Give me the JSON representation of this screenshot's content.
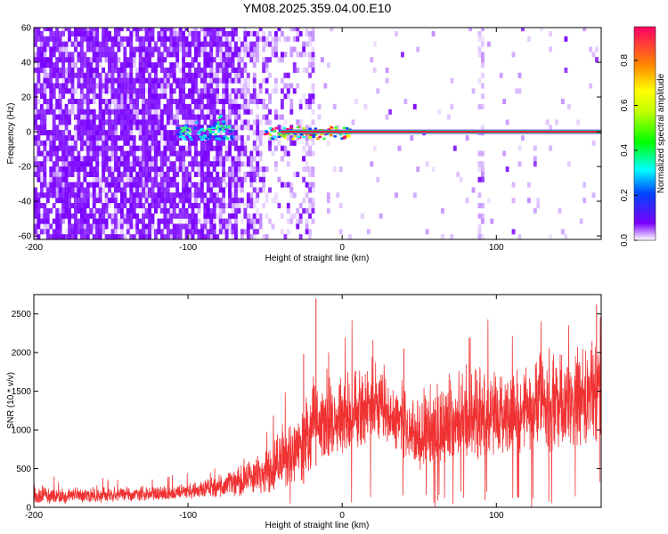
{
  "title": "YM08.2025.359.04.00.E10",
  "chart_data": [
    {
      "type": "heatmap",
      "xlabel": "Height of straight line (km)",
      "ylabel": "Frequency (Hz)",
      "xlim": [
        -200,
        168
      ],
      "ylim": [
        -62,
        60
      ],
      "xticks": [
        -200,
        -100,
        0,
        100
      ],
      "yticks": [
        60,
        40,
        20,
        0,
        -20,
        -40,
        -60
      ],
      "colorbar": {
        "label": "Normalized spectral amplitude",
        "range": [
          0.0,
          0.95
        ],
        "ticks": [
          0.0,
          0.2,
          0.4,
          0.6,
          0.8
        ],
        "tick_labels": [
          "0.0",
          "0.2",
          "0.4",
          "0.6",
          "0.8"
        ]
      },
      "features": {
        "noise_band_x": [
          -200,
          -50
        ],
        "line_frequency_hz": 0,
        "line_start_x": -50,
        "weak_cluster_x": [
          -108,
          -72
        ],
        "spike_columns_x": [
          -22,
          89
        ]
      }
    },
    {
      "type": "line",
      "xlabel": "Height of straight line (km)",
      "ylabel": "SNR (10 * v/v)",
      "xlim": [
        -200,
        168
      ],
      "ylim": [
        0,
        2750
      ],
      "xticks": [
        -200,
        -100,
        0,
        100
      ],
      "yticks": [
        0,
        500,
        1000,
        1500,
        2000,
        2500
      ],
      "color": "#f03232",
      "envelope_x": [
        -200,
        -150,
        -120,
        -100,
        -85,
        -70,
        -55,
        -45,
        -35,
        -25,
        -20,
        -10,
        0,
        10,
        20,
        30,
        40,
        50,
        60,
        70,
        80,
        90,
        100,
        110,
        120,
        130,
        140,
        150,
        160,
        168
      ],
      "envelope_min": [
        40,
        60,
        90,
        110,
        120,
        140,
        160,
        170,
        230,
        300,
        500,
        620,
        660,
        740,
        850,
        780,
        640,
        450,
        500,
        600,
        630,
        580,
        620,
        640,
        690,
        650,
        700,
        760,
        810,
        880
      ],
      "envelope_max": [
        310,
        290,
        300,
        340,
        420,
        560,
        760,
        980,
        1300,
        1550,
        1800,
        1900,
        1850,
        1900,
        1950,
        1850,
        1700,
        1600,
        1650,
        1800,
        1900,
        1900,
        1950,
        2000,
        2050,
        2100,
        2150,
        2250,
        2350,
        2480
      ]
    }
  ]
}
